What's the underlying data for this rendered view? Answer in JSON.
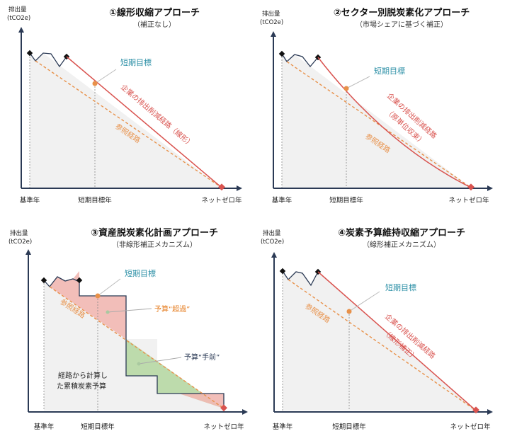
{
  "colors": {
    "axis": "#2b3a55",
    "company": "#d9534f",
    "reference": "#e8914a",
    "annotation": "#2b8fa6",
    "overshoot": "#f2b8b3",
    "underrun": "#b9d9a8",
    "shade": "#f1f1f1"
  },
  "panels": [
    {
      "title": "①線形収縮アプローチ",
      "subtitle": "（補正なし）",
      "y_unit_1": "排出量",
      "y_unit_2": "(tCO2e)",
      "x_base": "基準年",
      "x_short": "短期目標年",
      "x_netzero": "ネットゼロ年",
      "short_term_label": "短期目標",
      "company_path": "企業の排出削減経路（線形）",
      "reference_path": "参照経路"
    },
    {
      "title": "②セクター別脱炭素化アプローチ",
      "subtitle": "（市場シェアに基づく補正）",
      "y_unit_1": "排出量",
      "y_unit_2": "(tCO2e)",
      "x_base": "基準年",
      "x_short": "短期目標年",
      "x_netzero": "ネットゼロ年",
      "short_term_label": "短期目標",
      "company_path_1": "企業の排出削減経路",
      "company_path_2": "（原単位収束）",
      "reference_path": "参照経路"
    },
    {
      "title": "③資産脱炭素化計画アプローチ",
      "subtitle": "（非線形補正メカニズム）",
      "y_unit_1": "排出量",
      "y_unit_2": "(tCO2e)",
      "x_base": "基準年",
      "x_short": "短期目標年",
      "x_netzero": "ネットゼロ年",
      "short_term_label": "短期目標",
      "reference_path": "参照経路",
      "overshoot_label": "予算“超過”",
      "underrun_label": "予算“手前”",
      "budget_label_1": "経路から計算し",
      "budget_label_2": "た累積炭素予算"
    },
    {
      "title": "④炭素予算維持収縮アプローチ",
      "subtitle": "（線形補正メカニズム）",
      "y_unit_1": "排出量",
      "y_unit_2": "(tCO2e)",
      "x_base": "基準年",
      "x_short": "短期目標年",
      "x_netzero": "ネットゼロ年",
      "short_term_label": "短期目標",
      "company_path_1": "企業の排出削減経路",
      "company_path_2": "（線形補正）",
      "reference_path": "参照経路"
    }
  ]
}
